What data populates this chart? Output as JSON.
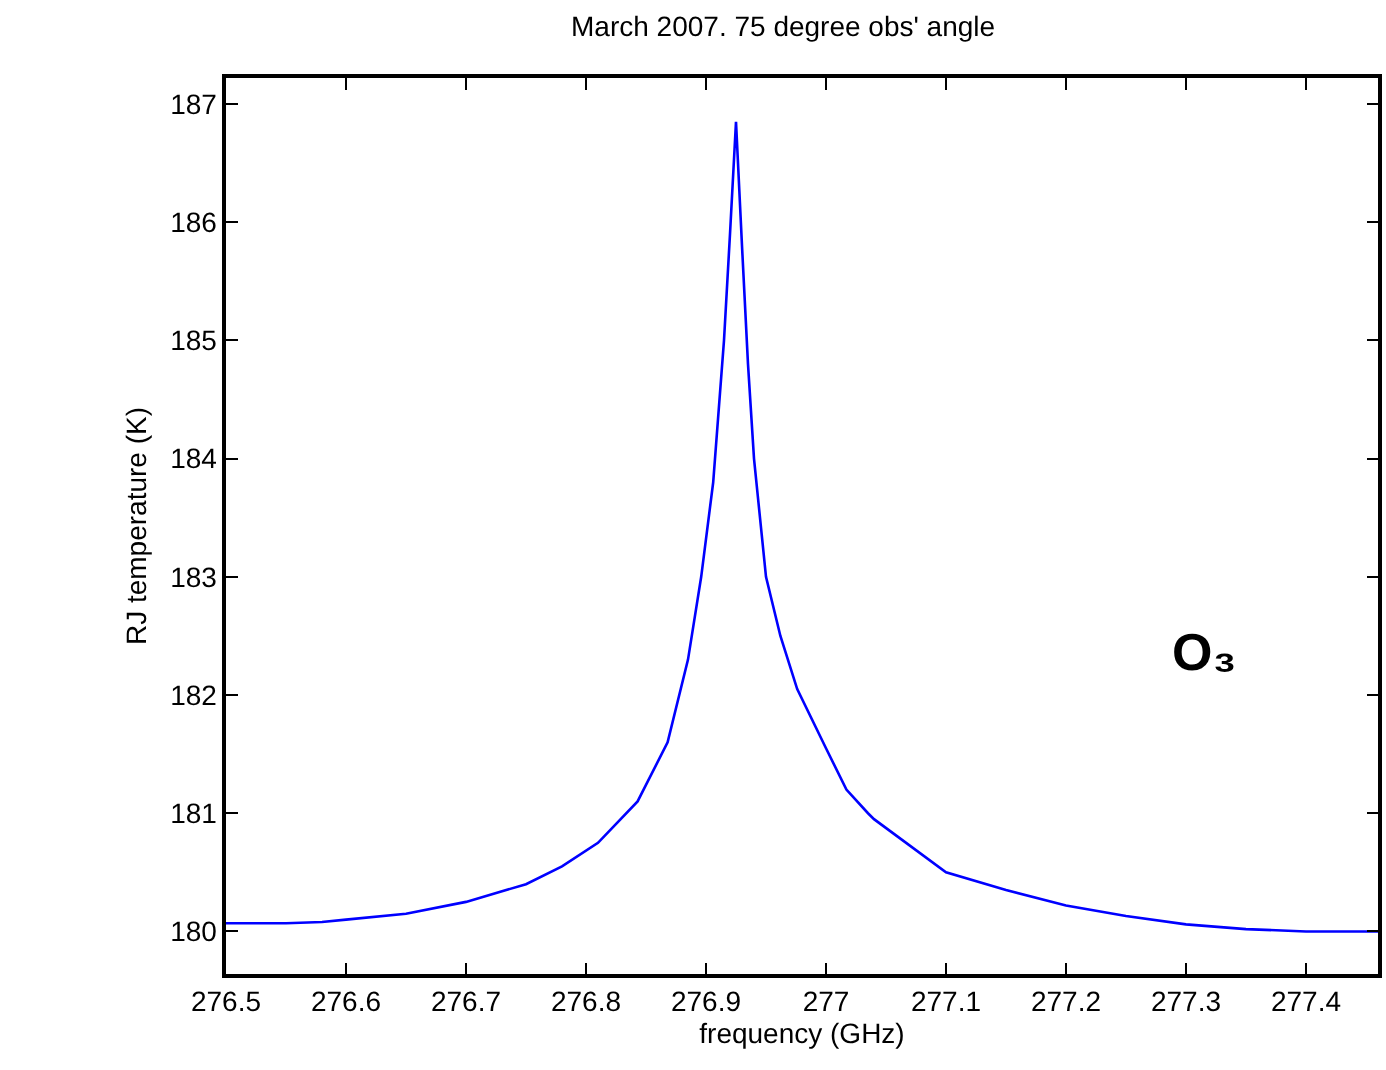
{
  "chart_data": {
    "type": "line",
    "title": "March 2007. 75 degree obs' angle",
    "xlabel": "frequency (GHz)",
    "ylabel": "RJ temperature (K)",
    "annotations": [
      "O₃"
    ],
    "x": [
      276.5,
      276.55,
      276.58,
      276.6,
      276.65,
      276.7,
      276.75,
      276.78,
      276.81,
      276.843,
      276.868,
      276.885,
      276.896,
      276.906,
      276.915,
      276.92,
      276.925,
      276.93,
      276.935,
      276.94,
      276.95,
      276.962,
      276.976,
      277.0,
      277.017,
      277.035,
      277.04,
      277.06,
      277.1,
      277.15,
      277.2,
      277.25,
      277.3,
      277.35,
      277.4,
      277.46
    ],
    "series": [
      {
        "color": "#0000ff",
        "values": [
          180.07,
          180.07,
          180.08,
          180.1,
          180.15,
          180.25,
          180.4,
          180.55,
          180.75,
          181.1,
          181.6,
          182.3,
          183.0,
          183.8,
          185.0,
          185.9,
          186.85,
          185.8,
          184.8,
          184.0,
          183.0,
          182.5,
          182.05,
          181.55,
          181.2,
          181.0,
          180.95,
          180.8,
          180.5,
          180.35,
          180.22,
          180.13,
          180.06,
          180.02,
          180.0,
          180.0
        ]
      }
    ],
    "xlim": [
      276.5,
      277.46
    ],
    "ylim": [
      179.64,
      187.22
    ],
    "xticks": [
      276.5,
      276.6,
      276.7,
      276.8,
      276.9,
      277,
      277.1,
      277.2,
      277.3,
      277.4
    ],
    "yticks": [
      180,
      181,
      182,
      183,
      184,
      185,
      186,
      187
    ],
    "marker": "none",
    "line_style": "solid"
  }
}
